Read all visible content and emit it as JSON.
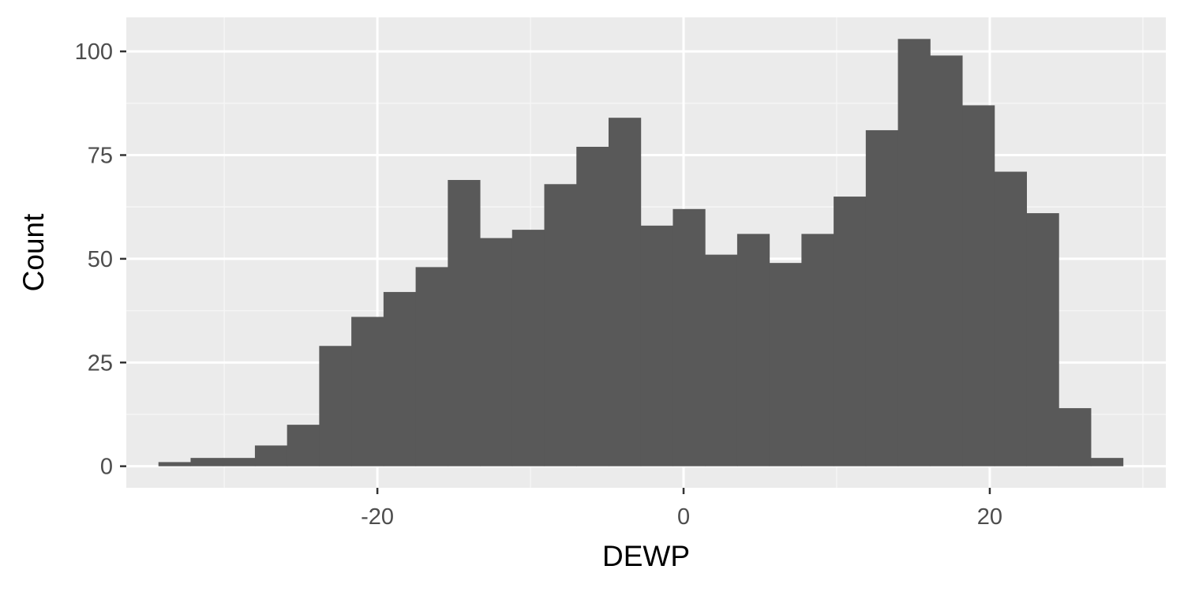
{
  "chart_data": {
    "type": "bar",
    "subtype": "histogram",
    "title": "",
    "xlabel": "DEWP",
    "ylabel": "Count",
    "xlim": [
      -36.4,
      31.5
    ],
    "ylim": [
      -5.2,
      108.2
    ],
    "x_ticks": [
      -20,
      0,
      20
    ],
    "x_tick_labels": [
      "-20",
      "0",
      "20"
    ],
    "y_ticks": [
      0,
      25,
      50,
      75,
      100
    ],
    "y_tick_labels": [
      "0",
      "25",
      "50",
      "75",
      "100"
    ],
    "x_minor_ticks": [
      -30,
      -10,
      10,
      30
    ],
    "y_minor_ticks": [
      12.5,
      37.5,
      62.5,
      87.5
    ],
    "grid": true,
    "legend": "none",
    "bin_width": 2.1,
    "bins": [
      {
        "x0": -34.3,
        "x1": -32.2,
        "count": 1
      },
      {
        "x0": -32.2,
        "x1": -30.1,
        "count": 2
      },
      {
        "x0": -30.1,
        "x1": -28.0,
        "count": 2
      },
      {
        "x0": -28.0,
        "x1": -25.9,
        "count": 5
      },
      {
        "x0": -25.9,
        "x1": -23.8,
        "count": 10
      },
      {
        "x0": -23.8,
        "x1": -21.7,
        "count": 29
      },
      {
        "x0": -21.7,
        "x1": -19.6,
        "count": 36
      },
      {
        "x0": -19.6,
        "x1": -17.5,
        "count": 42
      },
      {
        "x0": -17.5,
        "x1": -15.4,
        "count": 48
      },
      {
        "x0": -15.4,
        "x1": -13.3,
        "count": 69
      },
      {
        "x0": -13.3,
        "x1": -11.2,
        "count": 55
      },
      {
        "x0": -11.2,
        "x1": -9.1,
        "count": 57
      },
      {
        "x0": -9.1,
        "x1": -7.0,
        "count": 68
      },
      {
        "x0": -7.0,
        "x1": -4.9,
        "count": 77
      },
      {
        "x0": -4.9,
        "x1": -2.8,
        "count": 84
      },
      {
        "x0": -2.8,
        "x1": -0.7,
        "count": 58
      },
      {
        "x0": -0.7,
        "x1": 1.4,
        "count": 62
      },
      {
        "x0": 1.4,
        "x1": 3.5,
        "count": 51
      },
      {
        "x0": 3.5,
        "x1": 5.6,
        "count": 56
      },
      {
        "x0": 5.6,
        "x1": 7.7,
        "count": 49
      },
      {
        "x0": 7.7,
        "x1": 9.8,
        "count": 56
      },
      {
        "x0": 9.8,
        "x1": 11.9,
        "count": 65
      },
      {
        "x0": 11.9,
        "x1": 14.0,
        "count": 81
      },
      {
        "x0": 14.0,
        "x1": 16.1,
        "count": 103
      },
      {
        "x0": 16.1,
        "x1": 18.2,
        "count": 99
      },
      {
        "x0": 18.2,
        "x1": 20.3,
        "count": 87
      },
      {
        "x0": 20.3,
        "x1": 22.4,
        "count": 71
      },
      {
        "x0": 22.4,
        "x1": 24.5,
        "count": 61
      },
      {
        "x0": 24.5,
        "x1": 26.6,
        "count": 14
      },
      {
        "x0": 26.6,
        "x1": 28.7,
        "count": 2
      }
    ],
    "colors": {
      "panel_background": "#ebebeb",
      "grid_major": "#ffffff",
      "grid_minor": "#f5f5f5",
      "bar_fill": "#595959",
      "tick": "#333333",
      "tick_label": "#4d4d4d",
      "axis_title": "#000000"
    }
  }
}
